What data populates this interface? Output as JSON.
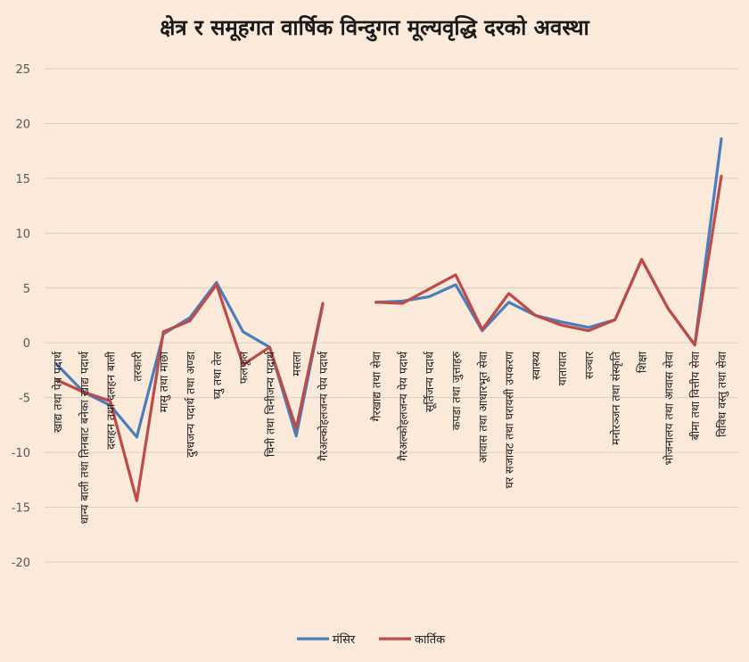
{
  "chart_data": {
    "type": "line",
    "title": "क्षेत्र र समूहगत वार्षिक विन्दुगत मूल्यवृद्धि दरको अवस्था",
    "xlabel": "",
    "ylabel": "",
    "ylim": [
      -20,
      25
    ],
    "yticks": [
      25,
      20,
      15,
      10,
      5,
      0,
      -5,
      -10,
      -15,
      -20
    ],
    "grid": true,
    "legend_position": "bottom",
    "categories": [
      "खाद्य तथा पेय पदार्थ",
      "धान्य बाली तथा तिनबाट बनेका खाद्य पदार्थ",
      "दलहन तथा दलहन बाली",
      "तरकारी",
      "मासु तथा माछा",
      "दुग्धजन्य पदार्थ तथा अण्डा",
      "घ्यु तथा तेल",
      "फलफूल",
      "चिनी तथा चिनीजन्य पदार्थ",
      "मसला",
      "गैरअल्कोहलजन्य पेय पदार्थ",
      "",
      "गैरखाद्य तथा सेवा",
      "गैरअल्कोहलजन्य पेय पदार्थ",
      "सूर्तिजन्य पदार्थ",
      "कपडा तथा जुत्ताहरु",
      "आवास तथा आधारभूत सेवा",
      "घर सजावट तथा घरायसी उपकरण",
      "स्वास्थ्य",
      "यातायात",
      "सञ्चार",
      "मनोरञ्जन तथा संस्कृति",
      "शिक्षा",
      "भोजनालय तथा आवास सेवा",
      "बीमा तथा वित्तीय सेवा",
      "विविध वस्तु तथा सेवा"
    ],
    "series": [
      {
        "name": "मंसिर",
        "color": "#4a7ebb",
        "values": [
          -2.0,
          -4.5,
          -5.7,
          -8.6,
          0.8,
          2.3,
          5.5,
          1.0,
          -0.4,
          -8.5,
          3.5,
          null,
          3.7,
          3.8,
          4.2,
          5.3,
          1.1,
          3.7,
          2.5,
          1.9,
          1.4,
          2.1,
          7.6,
          3.1,
          -0.2,
          18.6
        ]
      },
      {
        "name": "कार्तिक",
        "color": "#be4b48",
        "values": [
          -3.4,
          -4.5,
          -5.3,
          -14.4,
          1.0,
          2.0,
          5.3,
          -2.0,
          -0.4,
          -7.8,
          3.6,
          null,
          3.7,
          3.6,
          4.9,
          6.2,
          1.2,
          4.5,
          2.5,
          1.6,
          1.1,
          2.1,
          7.6,
          3.1,
          -0.2,
          15.2
        ]
      }
    ]
  }
}
